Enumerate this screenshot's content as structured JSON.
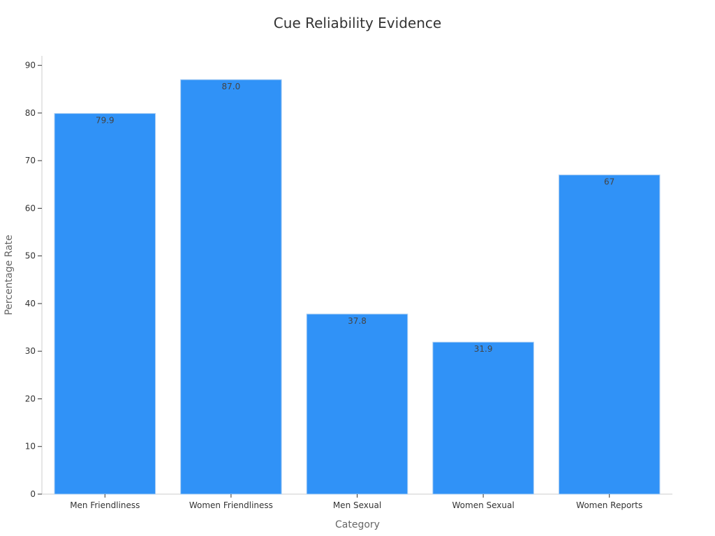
{
  "chart_data": {
    "type": "bar",
    "title": "Cue Reliability Evidence",
    "xlabel": "Category",
    "ylabel": "Percentage Rate",
    "categories": [
      "Men Friendliness",
      "Women Friendliness",
      "Men Sexual",
      "Women Sexual",
      "Women Reports"
    ],
    "values": [
      79.9,
      87.0,
      37.8,
      31.9,
      67
    ],
    "value_labels": [
      "79.9",
      "87.0",
      "37.8",
      "31.9",
      "67"
    ],
    "ylim": [
      0,
      92
    ],
    "yticks": [
      0,
      10,
      20,
      30,
      40,
      50,
      60,
      70,
      80,
      90
    ],
    "grid": false,
    "legend": "none",
    "bar_color": "#3092f7",
    "bar_edge_color": "#a9cdf2"
  }
}
